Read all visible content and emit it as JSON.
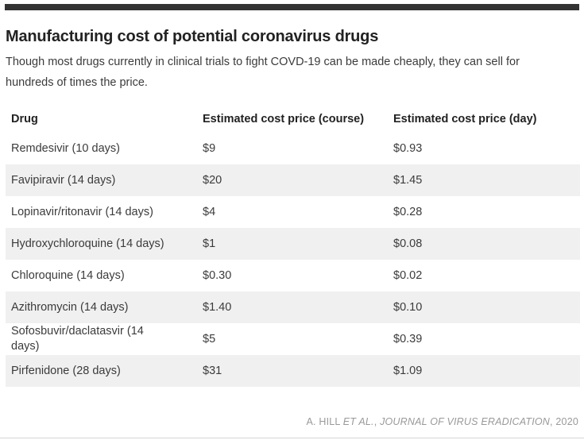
{
  "colors": {
    "top_bar": "#333333",
    "row_stripe": "#f0f0f0",
    "title_text": "#222222",
    "body_text": "#3b3b3b",
    "credit_text": "#999999"
  },
  "header": {
    "title": "Manufacturing cost of potential coronavirus drugs",
    "subtitle": "Though most drugs currently in clinical trials to fight COVD-19 can be made cheaply, they can sell for hundreds of times the price."
  },
  "table": {
    "columns": [
      "Drug",
      "Estimated cost price (course)",
      "Estimated cost price (day)"
    ],
    "rows": [
      {
        "drug": "Remdesivir (10 days)",
        "course": "$9",
        "day": "$0.93"
      },
      {
        "drug": "Favipiravir (14 days)",
        "course": "$20",
        "day": "$1.45"
      },
      {
        "drug": "Lopinavir/ritonavir (14 days)",
        "course": "$4",
        "day": "$0.28"
      },
      {
        "drug": "Hydroxychloroquine (14 days)",
        "course": "$1",
        "day": "$0.08"
      },
      {
        "drug": "Chloroquine (14 days)",
        "course": "$0.30",
        "day": "$0.02"
      },
      {
        "drug": "Azithromycin (14 days)",
        "course": "$1.40",
        "day": "$0.10"
      },
      {
        "drug": "Sofosbuvir/daclatasvir (14 days)",
        "course": "$5",
        "day": "$0.39"
      },
      {
        "drug": "Pirfenidone (28 days)",
        "course": "$31",
        "day": "$1.09"
      }
    ]
  },
  "footer": {
    "credit_author": "A. Hill ",
    "credit_etal": "et al.",
    "credit_sep1": ", ",
    "credit_journal": "Journal of Virus Eradication",
    "credit_sep2": ", ",
    "credit_year": "2020"
  }
}
